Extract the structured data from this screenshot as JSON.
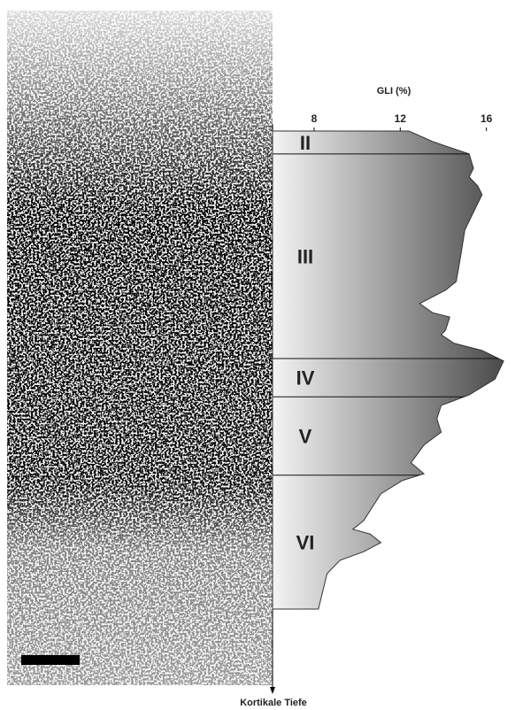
{
  "chart_data": {
    "type": "area",
    "x_label": "GLI (%)",
    "y_label": "Kortikale Tiefe",
    "xlim": [
      6.07,
      17
    ],
    "xticks": [
      8,
      12,
      16
    ],
    "ylim": [
      0,
      100
    ],
    "color_light": "#f4f4f4",
    "color_dark": "#4a4a4a",
    "values": [
      12.4,
      13.5,
      15.2,
      15.4,
      15.2,
      15.6,
      15.8,
      15.4,
      15.0,
      14.8,
      14.6,
      14.1,
      12.9,
      13.5,
      14.3,
      14.1,
      13.9,
      14.5,
      15.8,
      16.8,
      16.4,
      15.2,
      13.9,
      13.7,
      13.9,
      13.1,
      12.5,
      13.1,
      12.1,
      11.1,
      10.3,
      9.8,
      10.6,
      11.1,
      10.3,
      9.2,
      8.6,
      8.4,
      8.2
    ],
    "depth": [
      0,
      2.2,
      4.8,
      7.8,
      9.6,
      11.5,
      13.3,
      17,
      20.7,
      26.3,
      31.5,
      33.3,
      36.1,
      38,
      38.9,
      41.7,
      42.6,
      44.4,
      45.9,
      48.1,
      51.9,
      55.2,
      57.4,
      60.2,
      63,
      65.7,
      69.4,
      71.7,
      73.1,
      75.9,
      81.5,
      83.3,
      84.3,
      86.1,
      88,
      89.8,
      92.6,
      96.3,
      100
    ],
    "layers": [
      {
        "label": "II",
        "top": 0,
        "bottom": 4.8
      },
      {
        "label": "III",
        "top": 4.8,
        "bottom": 47.6
      },
      {
        "label": "IV",
        "top": 47.6,
        "bottom": 55.6
      },
      {
        "label": "V",
        "top": 55.6,
        "bottom": 72
      },
      {
        "label": "VI",
        "top": 72,
        "bottom": 100
      }
    ]
  }
}
